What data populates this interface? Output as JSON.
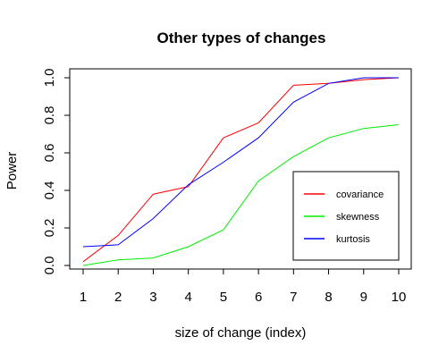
{
  "chart_data": {
    "type": "line",
    "title": "Other types of changes",
    "xlabel": "size of change (index)",
    "ylabel": "Power",
    "x": [
      1,
      2,
      3,
      4,
      5,
      6,
      7,
      8,
      9,
      10
    ],
    "xticks": [
      "1",
      "2",
      "3",
      "4",
      "5",
      "6",
      "7",
      "8",
      "9",
      "10"
    ],
    "yticks": [
      "0.0",
      "0.2",
      "0.4",
      "0.6",
      "0.8",
      "1.0"
    ],
    "ytick_values": [
      0,
      0.2,
      0.4,
      0.6,
      0.8,
      1.0
    ],
    "xlim": [
      1,
      10
    ],
    "ylim": [
      0,
      1
    ],
    "grid": false,
    "legend_position": "right",
    "series": [
      {
        "name": "covariance",
        "color": "#ff0000",
        "values": [
          0.02,
          0.16,
          0.38,
          0.42,
          0.68,
          0.76,
          0.96,
          0.97,
          0.99,
          1.0
        ]
      },
      {
        "name": "skewness",
        "color": "#00ee00",
        "values": [
          0.0,
          0.03,
          0.04,
          0.1,
          0.19,
          0.45,
          0.58,
          0.68,
          0.73,
          0.75
        ]
      },
      {
        "name": "kurtosis",
        "color": "#0000ff",
        "values": [
          0.1,
          0.11,
          0.25,
          0.43,
          0.55,
          0.68,
          0.87,
          0.97,
          1.0,
          1.0
        ]
      }
    ]
  }
}
